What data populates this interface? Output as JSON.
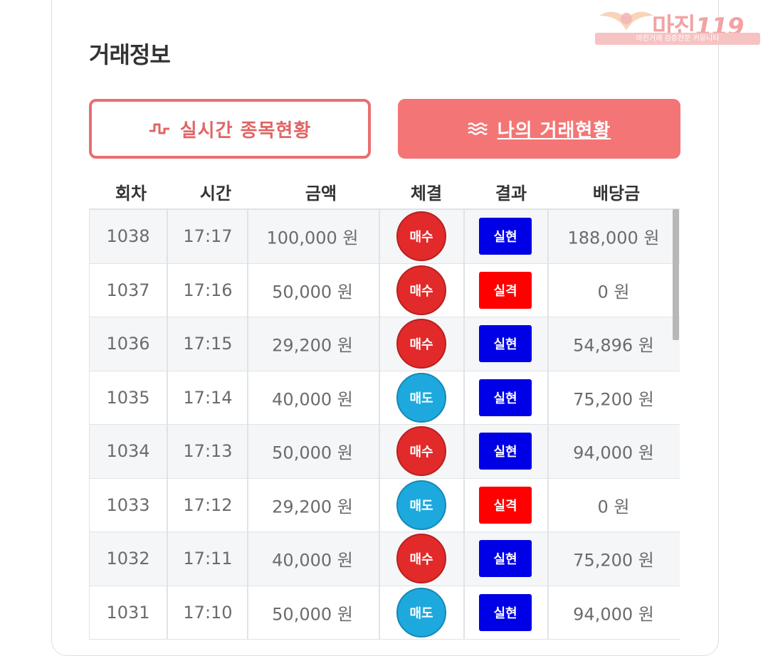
{
  "page": {
    "title": "거래정보"
  },
  "watermark": {
    "brand": "마진",
    "suffix": "119",
    "subtitle": "마진거래 검증전문 커뮤니티"
  },
  "buttons": {
    "realtime": {
      "label": "실시간 종목현황",
      "icon": "pulse-icon"
    },
    "mytrade": {
      "label": "나의 거래현황",
      "icon": "waves-icon"
    }
  },
  "colors": {
    "accent": "#f47575",
    "buy": "#e22a2a",
    "sell": "#1da9de",
    "win": "#0000e6",
    "lose": "#ff0000"
  },
  "table": {
    "headers": [
      "회차",
      "시간",
      "금액",
      "체결",
      "결과",
      "배당금"
    ],
    "rows": [
      {
        "round": "1038",
        "time": "17:17",
        "amount": "100,000 원",
        "trade": "매수",
        "trade_type": "buy",
        "result": "실현",
        "result_type": "win",
        "payout": "188,000 원"
      },
      {
        "round": "1037",
        "time": "17:16",
        "amount": "50,000 원",
        "trade": "매수",
        "trade_type": "buy",
        "result": "실격",
        "result_type": "lose",
        "payout": "0 원"
      },
      {
        "round": "1036",
        "time": "17:15",
        "amount": "29,200 원",
        "trade": "매수",
        "trade_type": "buy",
        "result": "실현",
        "result_type": "win",
        "payout": "54,896 원"
      },
      {
        "round": "1035",
        "time": "17:14",
        "amount": "40,000 원",
        "trade": "매도",
        "trade_type": "sell",
        "result": "실현",
        "result_type": "win",
        "payout": "75,200 원"
      },
      {
        "round": "1034",
        "time": "17:13",
        "amount": "50,000 원",
        "trade": "매수",
        "trade_type": "buy",
        "result": "실현",
        "result_type": "win",
        "payout": "94,000 원"
      },
      {
        "round": "1033",
        "time": "17:12",
        "amount": "29,200 원",
        "trade": "매도",
        "trade_type": "sell",
        "result": "실격",
        "result_type": "lose",
        "payout": "0 원"
      },
      {
        "round": "1032",
        "time": "17:11",
        "amount": "40,000 원",
        "trade": "매수",
        "trade_type": "buy",
        "result": "실현",
        "result_type": "win",
        "payout": "75,200 원"
      },
      {
        "round": "1031",
        "time": "17:10",
        "amount": "50,000 원",
        "trade": "매도",
        "trade_type": "sell",
        "result": "실현",
        "result_type": "win",
        "payout": "94,000 원"
      }
    ]
  }
}
